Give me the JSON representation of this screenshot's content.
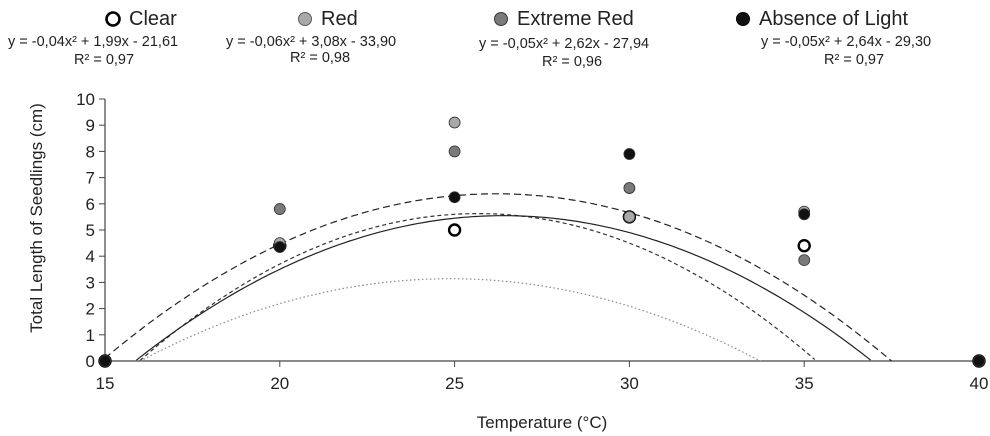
{
  "chart_data": {
    "type": "scatter",
    "title": "",
    "xlabel": "Temperature (°C)",
    "ylabel": "Total Length of Seedlings (cm)",
    "xlim": [
      15,
      40
    ],
    "ylim": [
      0,
      10
    ],
    "x_ticks": [
      "15",
      "20",
      "25",
      "30",
      "35",
      "40"
    ],
    "y_ticks": [
      "0",
      "1",
      "2",
      "3",
      "4",
      "5",
      "6",
      "7",
      "8",
      "9",
      "10"
    ],
    "grid": false,
    "legend_position": "top",
    "series": [
      {
        "name": "Clear",
        "marker": "open-circle",
        "color": "#000000",
        "x": [
          15,
          20,
          25,
          30,
          35,
          40
        ],
        "y": [
          0,
          4.4,
          5.0,
          5.5,
          4.4,
          0
        ],
        "equation": "y = -0,04x² + 1,99x - 21,61",
        "r2": "R² = 0,97",
        "fit": {
          "a": -0.04,
          "b": 1.99,
          "c": -21.61
        },
        "line_style": "dotted",
        "line_color": "#888888"
      },
      {
        "name": "Red",
        "marker": "filled-circle",
        "color": "#a9a9a9",
        "x": [
          15,
          20,
          25,
          30,
          35,
          40
        ],
        "y": [
          0,
          4.5,
          9.1,
          5.5,
          5.7,
          0
        ],
        "equation": "y = -0,06x² + 3,08x - 33,90",
        "r2": "R² = 0,98",
        "fit": {
          "a": -0.06,
          "b": 3.08,
          "c": -33.9
        },
        "line_style": "short-dash",
        "line_color": "#333333"
      },
      {
        "name": "Extreme Red",
        "marker": "filled-circle",
        "color": "#7a7a7a",
        "x": [
          15,
          20,
          25,
          30,
          35,
          40
        ],
        "y": [
          0,
          5.8,
          8.0,
          6.6,
          3.85,
          0
        ],
        "equation": "y = -0,05x² + 2,62x - 27,94",
        "r2": "R² = 0,96",
        "fit": {
          "a": -0.05,
          "b": 2.62,
          "c": -27.94
        },
        "line_style": "dash",
        "line_color": "#222222"
      },
      {
        "name": "Absence of Light",
        "marker": "filled-circle",
        "color": "#111111",
        "x": [
          15,
          20,
          25,
          30,
          35,
          40
        ],
        "y": [
          0,
          4.35,
          6.25,
          7.9,
          5.6,
          0
        ],
        "equation": "y = -0,05x² + 2,64x - 29,30",
        "r2": "R² = 0,97",
        "fit": {
          "a": -0.05,
          "b": 2.64,
          "c": -29.3
        },
        "line_style": "solid",
        "line_color": "#222222"
      }
    ]
  }
}
